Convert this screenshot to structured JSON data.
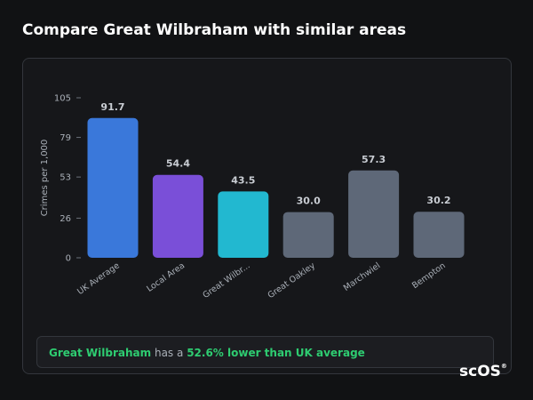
{
  "header": {
    "title": "Compare Great Wilbraham with similar areas"
  },
  "chart_data": {
    "type": "bar",
    "y_label": "Crimes per 1,000",
    "categories": [
      "UK Average",
      "Local Area",
      "Great Wilbr...",
      "Great Oakley",
      "Marchwiel",
      "Bempton"
    ],
    "values": [
      91.7,
      54.4,
      43.5,
      30.0,
      57.3,
      30.2
    ],
    "value_labels": [
      "91.7",
      "54.4",
      "43.5",
      "30.0",
      "57.3",
      "30.2"
    ],
    "colors": [
      "#3a78da",
      "#7a4fd8",
      "#22b8d0",
      "#5e6878",
      "#5e6878",
      "#5e6878"
    ],
    "ylim": [
      0,
      105
    ],
    "yticks": [
      0,
      26,
      53,
      79,
      105
    ]
  },
  "footer": {
    "place": "Great Wilbraham",
    "connector": "has a",
    "comparison": "52.6% lower than UK average"
  },
  "logo": {
    "text": "scOS",
    "mark": "®"
  }
}
